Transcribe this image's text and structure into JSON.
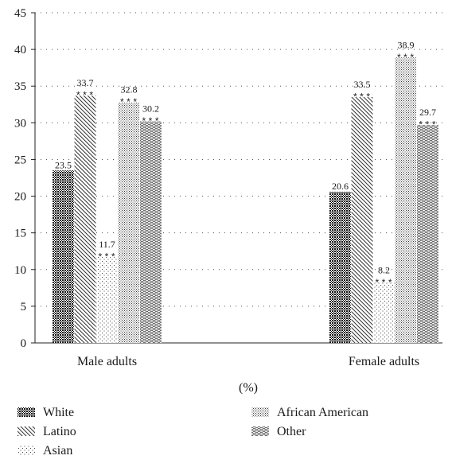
{
  "chart_data": {
    "type": "bar",
    "categories": [
      "Male adults",
      "Female adults"
    ],
    "series": [
      {
        "name": "White",
        "values": [
          23.5,
          20.6
        ],
        "labels": [
          "23.5",
          "20.6"
        ],
        "significance": [
          "",
          ""
        ]
      },
      {
        "name": "Latino",
        "values": [
          33.7,
          33.5
        ],
        "labels": [
          "33.7",
          "33.5"
        ],
        "significance": [
          "***",
          "***"
        ]
      },
      {
        "name": "Asian",
        "values": [
          11.7,
          8.2
        ],
        "labels": [
          "11.7",
          "8.2"
        ],
        "significance": [
          "***",
          "***"
        ]
      },
      {
        "name": "African American",
        "values": [
          32.8,
          38.9
        ],
        "labels": [
          "32.8",
          "38.9"
        ],
        "significance": [
          "***",
          "***"
        ]
      },
      {
        "name": "Other",
        "values": [
          30.2,
          29.7
        ],
        "labels": [
          "30.2",
          "29.7"
        ],
        "significance": [
          "***",
          "***"
        ]
      }
    ],
    "xlabel": "(%)",
    "ylabel": "",
    "ylim": [
      0,
      45
    ],
    "yticks": [
      0,
      5,
      10,
      15,
      20,
      25,
      30,
      35,
      40,
      45
    ],
    "grid": "dotted horizontal",
    "legend_position": "bottom",
    "legend_order": [
      "White",
      "Latino",
      "Asian",
      "African American",
      "Other"
    ]
  }
}
